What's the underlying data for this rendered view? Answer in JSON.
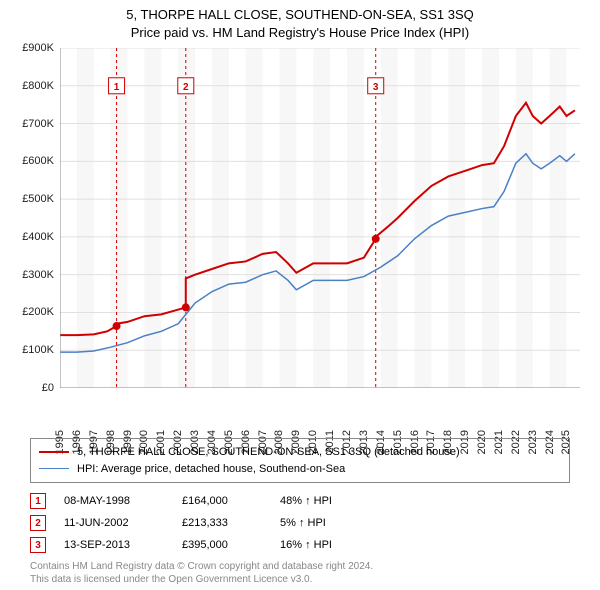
{
  "title_line1": "5, THORPE HALL CLOSE, SOUTHEND-ON-SEA, SS1 3SQ",
  "title_line2": "Price paid vs. HM Land Registry's House Price Index (HPI)",
  "chart": {
    "type": "line",
    "background_color": "#ffffff",
    "alt_band_color": "#f7f7f8",
    "grid_color": "#e0e0e0",
    "xlim": [
      1995,
      2025.8
    ],
    "ylim": [
      0,
      900000
    ],
    "ytick_step": 100000,
    "y_ticks": [
      "£0",
      "£100K",
      "£200K",
      "£300K",
      "£400K",
      "£500K",
      "£600K",
      "£700K",
      "£800K",
      "£900K"
    ],
    "x_ticks": [
      1995,
      1996,
      1997,
      1998,
      1999,
      2000,
      2001,
      2002,
      2003,
      2004,
      2005,
      2006,
      2007,
      2008,
      2009,
      2010,
      2011,
      2012,
      2013,
      2014,
      2015,
      2016,
      2017,
      2018,
      2019,
      2020,
      2021,
      2022,
      2023,
      2024,
      2025
    ],
    "legend": [
      {
        "label": "5, THORPE HALL CLOSE, SOUTHEND-ON-SEA, SS1 3SQ (detached house)",
        "color": "#d00000",
        "width": 2
      },
      {
        "label": "HPI: Average price, detached house, Southend-on-Sea",
        "color": "#4a80c4",
        "width": 1.5
      }
    ],
    "series_property": {
      "color": "#d00000",
      "width": 2,
      "points": [
        [
          1995.0,
          140000
        ],
        [
          1996.0,
          140000
        ],
        [
          1997.0,
          142000
        ],
        [
          1997.8,
          150000
        ],
        [
          1998.35,
          164000
        ],
        [
          1998.35,
          170000
        ],
        [
          1999.0,
          175000
        ],
        [
          2000.0,
          190000
        ],
        [
          2001.0,
          195000
        ],
        [
          2001.8,
          205000
        ],
        [
          2002.45,
          213333
        ],
        [
          2002.45,
          290000
        ],
        [
          2003.0,
          300000
        ],
        [
          2004.0,
          315000
        ],
        [
          2005.0,
          330000
        ],
        [
          2006.0,
          335000
        ],
        [
          2007.0,
          355000
        ],
        [
          2007.8,
          360000
        ],
        [
          2008.5,
          330000
        ],
        [
          2009.0,
          305000
        ],
        [
          2010.0,
          330000
        ],
        [
          2011.0,
          330000
        ],
        [
          2012.0,
          330000
        ],
        [
          2013.0,
          345000
        ],
        [
          2013.7,
          395000
        ],
        [
          2013.7,
          400000
        ],
        [
          2014.5,
          430000
        ],
        [
          2015.0,
          450000
        ],
        [
          2016.0,
          495000
        ],
        [
          2017.0,
          535000
        ],
        [
          2018.0,
          560000
        ],
        [
          2019.0,
          575000
        ],
        [
          2020.0,
          590000
        ],
        [
          2020.7,
          595000
        ],
        [
          2021.3,
          640000
        ],
        [
          2022.0,
          720000
        ],
        [
          2022.6,
          755000
        ],
        [
          2023.0,
          720000
        ],
        [
          2023.5,
          700000
        ],
        [
          2024.0,
          720000
        ],
        [
          2024.6,
          745000
        ],
        [
          2025.0,
          720000
        ],
        [
          2025.5,
          735000
        ]
      ]
    },
    "series_hpi": {
      "color": "#4a80c4",
      "width": 1.5,
      "points": [
        [
          1995.0,
          95000
        ],
        [
          1996.0,
          95000
        ],
        [
          1997.0,
          98000
        ],
        [
          1998.0,
          108000
        ],
        [
          1999.0,
          120000
        ],
        [
          2000.0,
          138000
        ],
        [
          2001.0,
          150000
        ],
        [
          2002.0,
          170000
        ],
        [
          2003.0,
          225000
        ],
        [
          2004.0,
          255000
        ],
        [
          2005.0,
          275000
        ],
        [
          2006.0,
          280000
        ],
        [
          2007.0,
          300000
        ],
        [
          2007.8,
          310000
        ],
        [
          2008.5,
          285000
        ],
        [
          2009.0,
          260000
        ],
        [
          2010.0,
          285000
        ],
        [
          2011.0,
          285000
        ],
        [
          2012.0,
          285000
        ],
        [
          2013.0,
          295000
        ],
        [
          2014.0,
          320000
        ],
        [
          2015.0,
          350000
        ],
        [
          2016.0,
          395000
        ],
        [
          2017.0,
          430000
        ],
        [
          2018.0,
          455000
        ],
        [
          2019.0,
          465000
        ],
        [
          2020.0,
          475000
        ],
        [
          2020.7,
          480000
        ],
        [
          2021.3,
          520000
        ],
        [
          2022.0,
          595000
        ],
        [
          2022.6,
          620000
        ],
        [
          2023.0,
          595000
        ],
        [
          2023.5,
          580000
        ],
        [
          2024.0,
          595000
        ],
        [
          2024.6,
          615000
        ],
        [
          2025.0,
          600000
        ],
        [
          2025.5,
          620000
        ]
      ]
    },
    "sale_markers": [
      {
        "n": "1",
        "x": 1998.35,
        "y": 164000,
        "label_y": 800000
      },
      {
        "n": "2",
        "x": 2002.45,
        "y": 213333,
        "label_y": 800000
      },
      {
        "n": "3",
        "x": 2013.7,
        "y": 395000,
        "label_y": 800000
      }
    ],
    "marker_line_color": "#d00000",
    "marker_line_dash": "3,3",
    "dot_radius": 4
  },
  "sales": [
    {
      "n": "1",
      "date": "08-MAY-1998",
      "price": "£164,000",
      "diff": "48% ↑ HPI"
    },
    {
      "n": "2",
      "date": "11-JUN-2002",
      "price": "£213,333",
      "diff": "5% ↑ HPI"
    },
    {
      "n": "3",
      "date": "13-SEP-2013",
      "price": "£395,000",
      "diff": "16% ↑ HPI"
    }
  ],
  "footer_line1": "Contains HM Land Registry data © Crown copyright and database right 2024.",
  "footer_line2": "This data is licensed under the Open Government Licence v3.0."
}
